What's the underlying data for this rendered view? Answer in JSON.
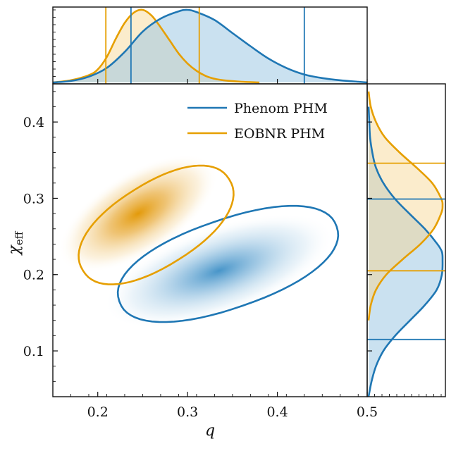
{
  "chart_data": {
    "type": "corner-plot",
    "xlabel": "q",
    "ylabel": "χ",
    "ylabel_sub": "eff",
    "xlim": [
      0.15,
      0.5
    ],
    "ylim": [
      0.04,
      0.45
    ],
    "xticks": [
      0.2,
      0.3,
      0.4,
      0.5
    ],
    "xtick_labels": [
      "0.2",
      "0.3",
      "0.4",
      "0.5"
    ],
    "yticks": [
      0.1,
      0.2,
      0.3,
      0.4
    ],
    "ytick_labels": [
      "0.1",
      "0.2",
      "0.3",
      "0.4"
    ],
    "legend_position": "top-right",
    "series": [
      {
        "name": "Phenom PHM",
        "color": "#1f77b4",
        "fill": "#9ec8e4",
        "mode": [
          0.335,
          0.205
        ],
        "q_marginal": {
          "x": [
            0.15,
            0.17,
            0.19,
            0.21,
            0.23,
            0.25,
            0.27,
            0.29,
            0.3,
            0.31,
            0.33,
            0.35,
            0.37,
            0.39,
            0.41,
            0.43,
            0.45,
            0.47,
            0.49,
            0.5
          ],
          "density": [
            0.0,
            0.02,
            0.08,
            0.2,
            0.42,
            0.7,
            0.88,
            0.98,
            1.0,
            0.97,
            0.86,
            0.68,
            0.5,
            0.33,
            0.2,
            0.11,
            0.06,
            0.03,
            0.01,
            0.0
          ]
        },
        "q_interval": [
          0.237,
          0.43
        ],
        "chi_marginal": {
          "y": [
            0.04,
            0.06,
            0.08,
            0.1,
            0.12,
            0.14,
            0.16,
            0.18,
            0.2,
            0.22,
            0.23,
            0.24,
            0.26,
            0.28,
            0.3,
            0.32,
            0.34,
            0.36,
            0.38,
            0.4,
            0.42
          ],
          "density": [
            0.0,
            0.04,
            0.1,
            0.2,
            0.36,
            0.56,
            0.76,
            0.92,
            0.99,
            1.0,
            0.99,
            0.93,
            0.76,
            0.55,
            0.35,
            0.2,
            0.1,
            0.05,
            0.02,
            0.01,
            0.0
          ]
        },
        "chi_interval": [
          0.115,
          0.299
        ],
        "contour": {
          "center": [
            0.345,
            0.214
          ],
          "angle_deg": -19,
          "a": 0.128,
          "b": 0.058
        }
      },
      {
        "name": "EOBNR PHM",
        "color": "#e69f00",
        "fill": "#f7d58e",
        "mode": [
          0.245,
          0.28
        ],
        "q_marginal": {
          "x": [
            0.15,
            0.17,
            0.19,
            0.2,
            0.21,
            0.22,
            0.23,
            0.24,
            0.25,
            0.26,
            0.27,
            0.28,
            0.29,
            0.3,
            0.31,
            0.32,
            0.33,
            0.34,
            0.36,
            0.38
          ],
          "density": [
            0.0,
            0.03,
            0.1,
            0.18,
            0.35,
            0.6,
            0.82,
            0.96,
            1.0,
            0.92,
            0.76,
            0.58,
            0.4,
            0.26,
            0.16,
            0.09,
            0.05,
            0.03,
            0.01,
            0.0
          ]
        },
        "q_interval": [
          0.209,
          0.313
        ],
        "chi_marginal": {
          "y": [
            0.14,
            0.16,
            0.18,
            0.2,
            0.22,
            0.24,
            0.26,
            0.28,
            0.29,
            0.3,
            0.32,
            0.34,
            0.36,
            0.38,
            0.4,
            0.42,
            0.44
          ],
          "density": [
            0.0,
            0.03,
            0.1,
            0.24,
            0.46,
            0.7,
            0.88,
            0.98,
            1.0,
            0.98,
            0.86,
            0.65,
            0.42,
            0.22,
            0.1,
            0.03,
            0.0
          ]
        },
        "chi_interval": [
          0.205,
          0.346
        ],
        "contour": {
          "center": [
            0.265,
            0.265
          ],
          "angle_deg": -32,
          "a": 0.096,
          "b": 0.054
        }
      }
    ]
  }
}
